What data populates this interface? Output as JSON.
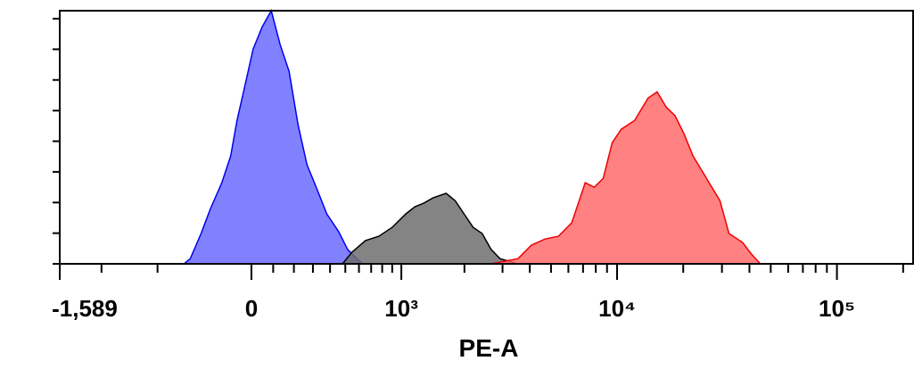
{
  "chart_data": {
    "type": "histogram-overlay",
    "x_label": "PE-A",
    "x_scale": "biexponential",
    "xlim": [
      -1589,
      222000
    ],
    "xticks": [
      {
        "value": -1589,
        "label": "-1,589"
      },
      0,
      {
        "value": 1000,
        "label": "10³"
      },
      {
        "value": 10000,
        "label": "10⁴"
      },
      {
        "value": 100000,
        "label": "10⁵"
      }
    ],
    "xminorticks": [
      -1000,
      -500,
      100,
      200,
      300,
      400,
      500,
      600,
      700,
      800,
      900,
      2000,
      3000,
      4000,
      5000,
      6000,
      7000,
      8000,
      9000,
      20000,
      30000,
      40000,
      50000,
      60000,
      70000,
      80000,
      90000,
      200000
    ],
    "ylim": [
      0,
      8.26
    ],
    "yticks": [
      0,
      1,
      2,
      3,
      4,
      5,
      6,
      7,
      8
    ],
    "series": [
      {
        "color": "#0000ee",
        "fill": "#6b6bff",
        "x": [
          -333,
          -298,
          -240,
          -194,
          -137,
          -95,
          -66,
          -33,
          8,
          49,
          91,
          133,
          176,
          221,
          268,
          318,
          380,
          455,
          516,
          581,
          629
        ],
        "values": [
          0,
          0.17,
          0.99,
          1.77,
          2.65,
          3.52,
          4.68,
          5.7,
          7.01,
          7.73,
          8.26,
          7.15,
          6.28,
          4.53,
          3.23,
          2.5,
          1.63,
          1.05,
          0.47,
          0.17,
          0
        ]
      },
      {
        "color": "#000000",
        "fill": "#6e6e6e",
        "x": [
          481,
          548,
          652,
          768,
          900,
          1052,
          1164,
          1286,
          1421,
          1642,
          1811,
          1992,
          2195,
          2416,
          2656,
          2920,
          3532
        ],
        "values": [
          0,
          0.38,
          0.76,
          0.9,
          1.19,
          1.63,
          1.86,
          1.98,
          2.15,
          2.3,
          2.06,
          1.63,
          1.19,
          0.99,
          0.47,
          0.17,
          0
        ]
      },
      {
        "color": "#ee0000",
        "fill": "#ff6b6b",
        "x": [
          2656,
          3532,
          4072,
          4690,
          5403,
          6220,
          7164,
          7873,
          8648,
          9500,
          10440,
          12020,
          13840,
          15210,
          16710,
          18360,
          20170,
          22160,
          25520,
          29380,
          32280,
          37160,
          40830,
          44850
        ],
        "values": [
          0,
          0.17,
          0.61,
          0.81,
          0.9,
          1.34,
          2.65,
          2.5,
          2.79,
          3.95,
          4.39,
          4.68,
          5.41,
          5.61,
          5.12,
          4.83,
          4.24,
          3.52,
          2.79,
          2.06,
          0.99,
          0.7,
          0.32,
          0
        ]
      }
    ]
  }
}
